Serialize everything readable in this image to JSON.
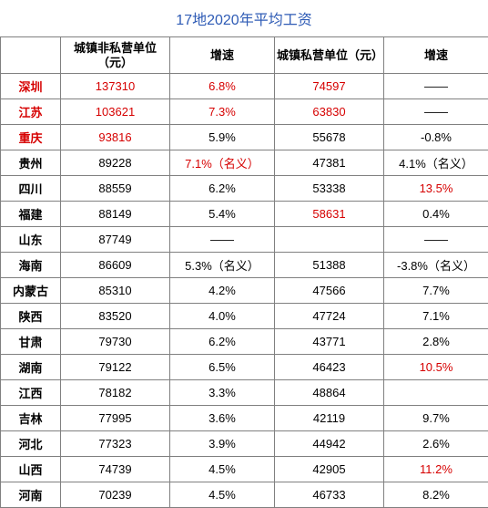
{
  "title": "17地2020年平均工资",
  "title_color": "#2e5bb5",
  "columns": {
    "region": "",
    "nonpriv_value": "城镇非私营单位（元）",
    "nonpriv_rate": "增速",
    "priv_value": "城镇私营单位（元）",
    "priv_rate": "增速"
  },
  "colors": {
    "black": "#000000",
    "red": "#d60000",
    "blue": "#2e5bb5",
    "border": "#808080"
  },
  "rows": [
    {
      "region": "深圳",
      "region_color": "red",
      "nonpriv_value": "137310",
      "nonpriv_value_color": "red",
      "nonpriv_rate": "6.8%",
      "nonpriv_rate_color": "red",
      "priv_value": "74597",
      "priv_value_color": "red",
      "priv_rate": "——",
      "priv_rate_color": "black"
    },
    {
      "region": "江苏",
      "region_color": "red",
      "nonpriv_value": "103621",
      "nonpriv_value_color": "red",
      "nonpriv_rate": "7.3%",
      "nonpriv_rate_color": "red",
      "priv_value": "63830",
      "priv_value_color": "red",
      "priv_rate": "——",
      "priv_rate_color": "black"
    },
    {
      "region": "重庆",
      "region_color": "red",
      "nonpriv_value": "93816",
      "nonpriv_value_color": "red",
      "nonpriv_rate": "5.9%",
      "nonpriv_rate_color": "black",
      "priv_value": "55678",
      "priv_value_color": "black",
      "priv_rate": "-0.8%",
      "priv_rate_color": "black"
    },
    {
      "region": "贵州",
      "region_color": "black",
      "nonpriv_value": "89228",
      "nonpriv_value_color": "black",
      "nonpriv_rate": "7.1%（名义）",
      "nonpriv_rate_color": "red",
      "priv_value": "47381",
      "priv_value_color": "black",
      "priv_rate": "4.1%（名义）",
      "priv_rate_color": "black"
    },
    {
      "region": "四川",
      "region_color": "black",
      "nonpriv_value": "88559",
      "nonpriv_value_color": "black",
      "nonpriv_rate": "6.2%",
      "nonpriv_rate_color": "black",
      "priv_value": "53338",
      "priv_value_color": "black",
      "priv_rate": "13.5%",
      "priv_rate_color": "red"
    },
    {
      "region": "福建",
      "region_color": "black",
      "nonpriv_value": "88149",
      "nonpriv_value_color": "black",
      "nonpriv_rate": "5.4%",
      "nonpriv_rate_color": "black",
      "priv_value": "58631",
      "priv_value_color": "red",
      "priv_rate": "0.4%",
      "priv_rate_color": "black"
    },
    {
      "region": "山东",
      "region_color": "black",
      "nonpriv_value": "87749",
      "nonpriv_value_color": "black",
      "nonpriv_rate": "——",
      "nonpriv_rate_color": "black",
      "priv_value": "",
      "priv_value_color": "black",
      "priv_rate": "——",
      "priv_rate_color": "black"
    },
    {
      "region": "海南",
      "region_color": "black",
      "nonpriv_value": "86609",
      "nonpriv_value_color": "black",
      "nonpriv_rate": "5.3%（名义）",
      "nonpriv_rate_color": "black",
      "priv_value": "51388",
      "priv_value_color": "black",
      "priv_rate": "-3.8%（名义）",
      "priv_rate_color": "black"
    },
    {
      "region": "内蒙古",
      "region_color": "black",
      "nonpriv_value": "85310",
      "nonpriv_value_color": "black",
      "nonpriv_rate": "4.2%",
      "nonpriv_rate_color": "black",
      "priv_value": "47566",
      "priv_value_color": "black",
      "priv_rate": "7.7%",
      "priv_rate_color": "black"
    },
    {
      "region": "陕西",
      "region_color": "black",
      "nonpriv_value": "83520",
      "nonpriv_value_color": "black",
      "nonpriv_rate": "4.0%",
      "nonpriv_rate_color": "black",
      "priv_value": "47724",
      "priv_value_color": "black",
      "priv_rate": "7.1%",
      "priv_rate_color": "black"
    },
    {
      "region": "甘肃",
      "region_color": "black",
      "nonpriv_value": "79730",
      "nonpriv_value_color": "black",
      "nonpriv_rate": "6.2%",
      "nonpriv_rate_color": "black",
      "priv_value": "43771",
      "priv_value_color": "black",
      "priv_rate": "2.8%",
      "priv_rate_color": "black"
    },
    {
      "region": "湖南",
      "region_color": "black",
      "nonpriv_value": "79122",
      "nonpriv_value_color": "black",
      "nonpriv_rate": "6.5%",
      "nonpriv_rate_color": "black",
      "priv_value": "46423",
      "priv_value_color": "black",
      "priv_rate": "10.5%",
      "priv_rate_color": "red"
    },
    {
      "region": "江西",
      "region_color": "black",
      "nonpriv_value": "78182",
      "nonpriv_value_color": "black",
      "nonpriv_rate": "3.3%",
      "nonpriv_rate_color": "black",
      "priv_value": "48864",
      "priv_value_color": "black",
      "priv_rate": "",
      "priv_rate_color": "black"
    },
    {
      "region": "吉林",
      "region_color": "black",
      "nonpriv_value": "77995",
      "nonpriv_value_color": "black",
      "nonpriv_rate": "3.6%",
      "nonpriv_rate_color": "black",
      "priv_value": "42119",
      "priv_value_color": "black",
      "priv_rate": "9.7%",
      "priv_rate_color": "black"
    },
    {
      "region": "河北",
      "region_color": "black",
      "nonpriv_value": "77323",
      "nonpriv_value_color": "black",
      "nonpriv_rate": "3.9%",
      "nonpriv_rate_color": "black",
      "priv_value": "44942",
      "priv_value_color": "black",
      "priv_rate": "2.6%",
      "priv_rate_color": "black"
    },
    {
      "region": "山西",
      "region_color": "black",
      "nonpriv_value": "74739",
      "nonpriv_value_color": "black",
      "nonpriv_rate": "4.5%",
      "nonpriv_rate_color": "black",
      "priv_value": "42905",
      "priv_value_color": "black",
      "priv_rate": "11.2%",
      "priv_rate_color": "red"
    },
    {
      "region": "河南",
      "region_color": "black",
      "nonpriv_value": "70239",
      "nonpriv_value_color": "black",
      "nonpriv_rate": "4.5%",
      "nonpriv_rate_color": "black",
      "priv_value": "46733",
      "priv_value_color": "black",
      "priv_rate": "8.2%",
      "priv_rate_color": "black"
    }
  ]
}
